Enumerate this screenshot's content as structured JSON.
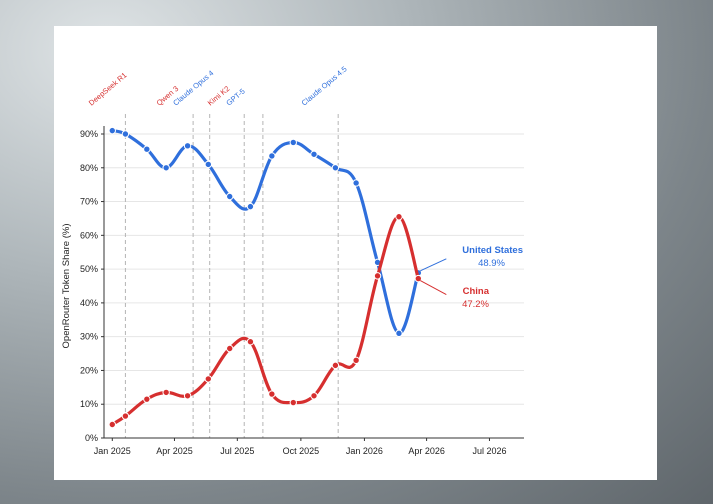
{
  "chart_data": {
    "type": "line",
    "title": "",
    "xlabel": "",
    "ylabel": "OpenRouter Token Share (%)",
    "ylim": [
      0,
      90
    ],
    "yticks": [
      0,
      10,
      20,
      30,
      40,
      50,
      60,
      70,
      80,
      90
    ],
    "ytick_labels": [
      "0%",
      "10%",
      "20%",
      "30%",
      "40%",
      "50%",
      "60%",
      "70%",
      "80%",
      "90%"
    ],
    "xticks": [
      "2025-01-01",
      "2025-04-01",
      "2025-07-01",
      "2025-10-01",
      "2026-01-01",
      "2026-04-01",
      "2026-07-01"
    ],
    "xtick_labels": [
      "Jan 2025",
      "Apr 2025",
      "Jul 2025",
      "Oct 2025",
      "Jan 2026",
      "Apr 2026",
      "Jul 2026"
    ],
    "xlim": [
      "2024-12-20",
      "2026-08-20"
    ],
    "grid": "horizontal",
    "series": [
      {
        "name": "United States",
        "color": "#2f6fdc",
        "end_label": "48.9%",
        "points": [
          {
            "x": "2025-01-01",
            "y": 91
          },
          {
            "x": "2025-01-20",
            "y": 90
          },
          {
            "x": "2025-02-20",
            "y": 85.5
          },
          {
            "x": "2025-03-20",
            "y": 80
          },
          {
            "x": "2025-04-20",
            "y": 86.5
          },
          {
            "x": "2025-05-20",
            "y": 81
          },
          {
            "x": "2025-06-20",
            "y": 71.5
          },
          {
            "x": "2025-07-20",
            "y": 68.5
          },
          {
            "x": "2025-08-20",
            "y": 83.5
          },
          {
            "x": "2025-09-20",
            "y": 87.5
          },
          {
            "x": "2025-10-20",
            "y": 84
          },
          {
            "x": "2025-11-20",
            "y": 80
          },
          {
            "x": "2025-12-20",
            "y": 75.5
          },
          {
            "x": "2026-01-20",
            "y": 52
          },
          {
            "x": "2026-02-20",
            "y": 31
          },
          {
            "x": "2026-03-20",
            "y": 48.9
          }
        ]
      },
      {
        "name": "China",
        "color": "#d62f2f",
        "end_label": "47.2%",
        "points": [
          {
            "x": "2025-01-01",
            "y": 4
          },
          {
            "x": "2025-01-20",
            "y": 6.5
          },
          {
            "x": "2025-02-20",
            "y": 11.5
          },
          {
            "x": "2025-03-20",
            "y": 13.5
          },
          {
            "x": "2025-04-20",
            "y": 12.5
          },
          {
            "x": "2025-05-20",
            "y": 17.5
          },
          {
            "x": "2025-06-20",
            "y": 26.5
          },
          {
            "x": "2025-07-20",
            "y": 28.5
          },
          {
            "x": "2025-08-20",
            "y": 13
          },
          {
            "x": "2025-09-20",
            "y": 10.5
          },
          {
            "x": "2025-10-20",
            "y": 12.5
          },
          {
            "x": "2025-11-20",
            "y": 21.5
          },
          {
            "x": "2025-12-20",
            "y": 23
          },
          {
            "x": "2026-01-20",
            "y": 48
          },
          {
            "x": "2026-02-20",
            "y": 65.5
          },
          {
            "x": "2026-03-20",
            "y": 47.2
          }
        ]
      }
    ],
    "annotations": [
      {
        "label": "DeepSeek R1",
        "date": "2025-01-20",
        "color": "#d62f2f"
      },
      {
        "label": "Qwen 3",
        "date": "2025-04-28",
        "color": "#d62f2f"
      },
      {
        "label": "Claude Opus 4",
        "date": "2025-05-22",
        "color": "#2f6fdc"
      },
      {
        "label": "Kimi K2",
        "date": "2025-07-11",
        "color": "#d62f2f"
      },
      {
        "label": "GPT-5",
        "date": "2025-08-07",
        "color": "#2f6fdc"
      },
      {
        "label": "Claude Opus 4.5",
        "date": "2025-11-24",
        "color": "#2f6fdc"
      }
    ]
  }
}
